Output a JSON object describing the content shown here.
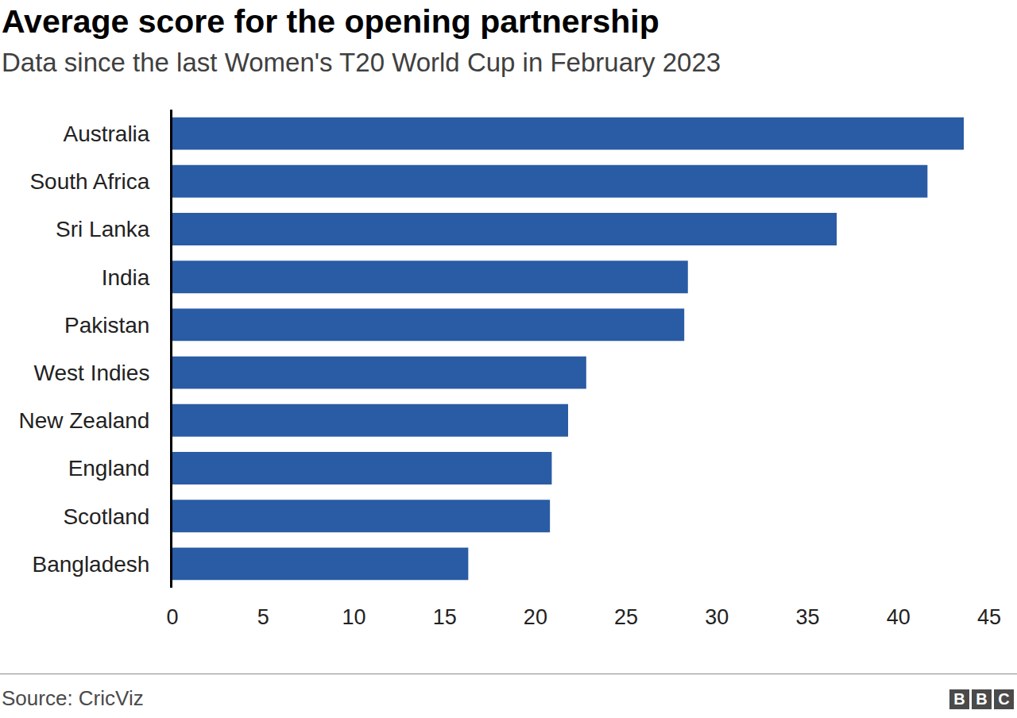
{
  "chart_data": {
    "type": "bar",
    "orientation": "horizontal",
    "title": "Average score for the opening partnership",
    "subtitle": "Data since the last Women's T20 World Cup in February 2023",
    "source": "Source: CricViz",
    "logo": "BBC",
    "categories": [
      "Australia",
      "South Africa",
      "Sri Lanka",
      "India",
      "Pakistan",
      "West Indies",
      "New Zealand",
      "England",
      "Scotland",
      "Bangladesh"
    ],
    "values": [
      43.6,
      41.6,
      36.6,
      28.4,
      28.2,
      22.8,
      21.8,
      20.9,
      20.8,
      16.3
    ],
    "color": "#2a5ba5",
    "xlim": [
      0,
      45
    ],
    "xticks": [
      0,
      5,
      10,
      15,
      20,
      25,
      30,
      35,
      40,
      45
    ],
    "grid": false,
    "data_labels": false
  }
}
